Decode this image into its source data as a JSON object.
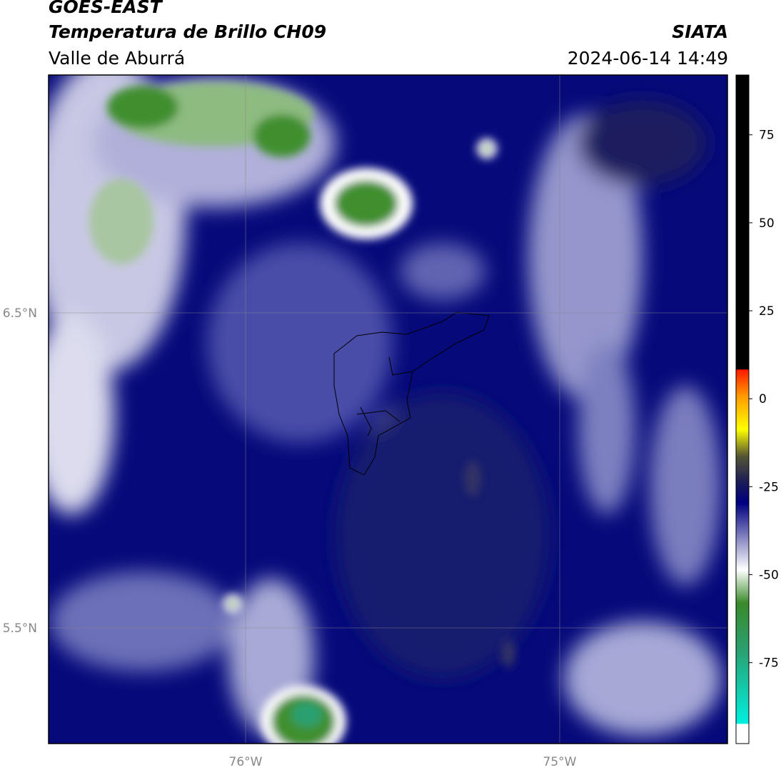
{
  "header": {
    "title": "GOES-EAST",
    "subtitle": "Temperatura de Brillo CH09",
    "region": "Valle de Aburrá",
    "agency": "SIATA",
    "timestamp": "2024-06-14 14:49"
  },
  "map": {
    "lat_labels": [
      "6.5°N",
      "5.5°N"
    ],
    "lon_labels": [
      "76°W",
      "75°W"
    ]
  },
  "colorbar": {
    "lim": [
      -98,
      92
    ],
    "ticks": [
      75,
      50,
      25,
      0,
      -25,
      -50,
      -75
    ]
  }
}
